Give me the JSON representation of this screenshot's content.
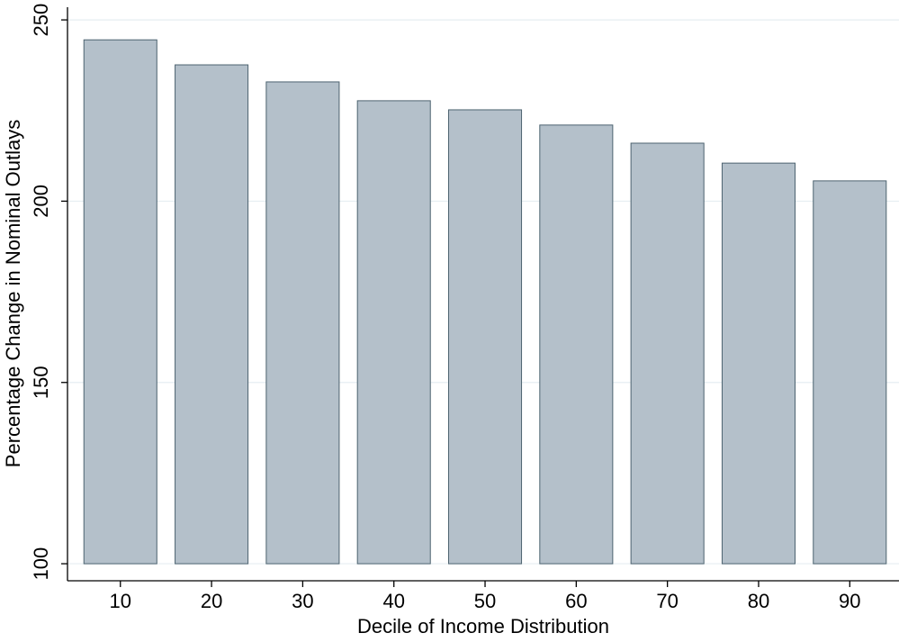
{
  "chart_data": {
    "type": "bar",
    "x_label": "Decile of Income Distribution",
    "y_label": "Percentage Change in Nominal Outlays",
    "x": [
      10,
      20,
      30,
      40,
      50,
      60,
      70,
      80,
      90
    ],
    "values": [
      244.5,
      237.6,
      232.9,
      227.7,
      225.2,
      221.0,
      216.0,
      210.5,
      205.6
    ],
    "base": 100,
    "bar_width": 8,
    "color": "#b4c0ca",
    "edge_color": "#4d6370",
    "xlim": [
      4.2,
      95.4
    ],
    "xticks": [
      10,
      20,
      30,
      40,
      50,
      60,
      70,
      80,
      90
    ],
    "ylim": [
      95.3,
      253.5
    ],
    "yticks": [
      100,
      150,
      200,
      250
    ],
    "grid": true
  }
}
